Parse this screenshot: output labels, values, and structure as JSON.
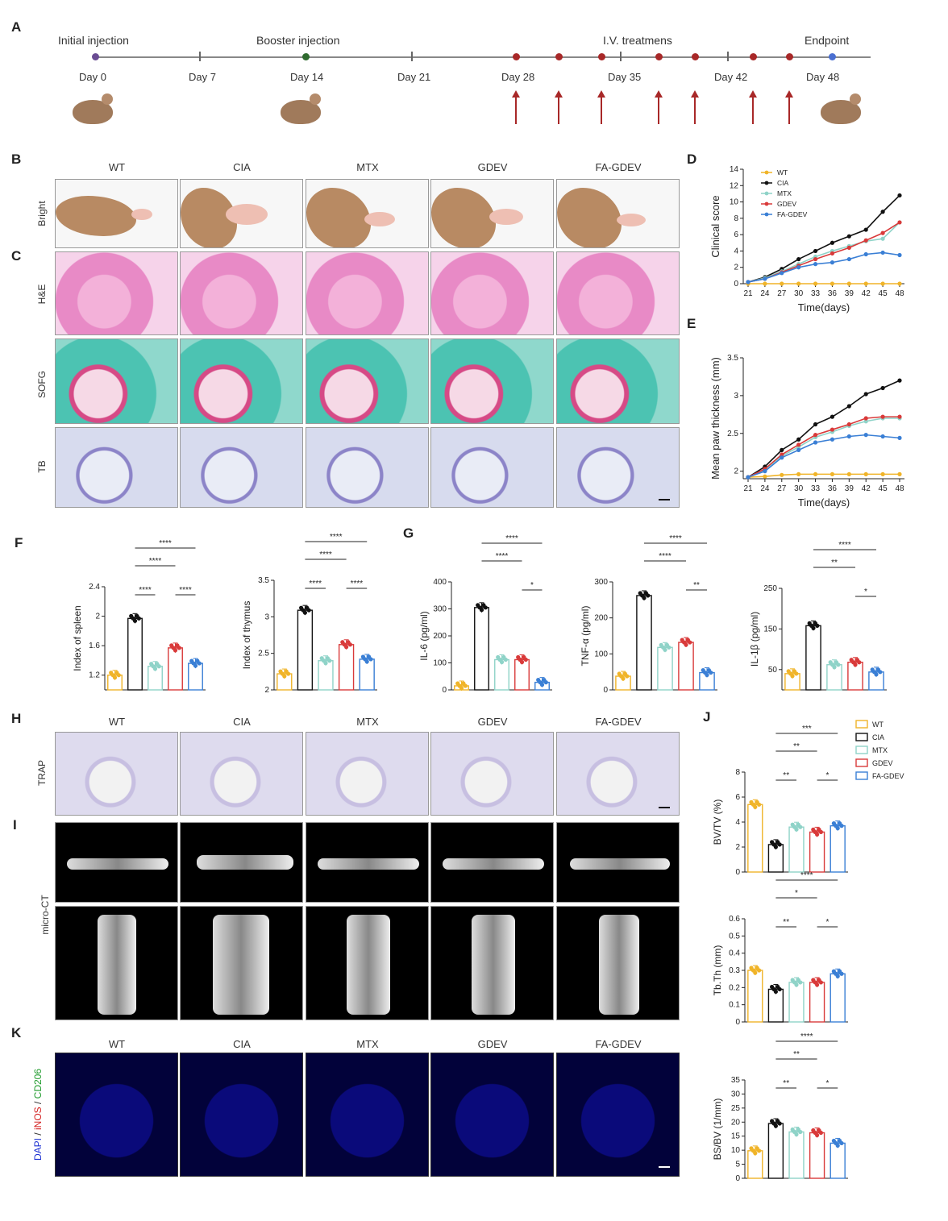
{
  "panel_letters": {
    "A": "A",
    "B": "B",
    "C": "C",
    "D": "D",
    "E": "E",
    "F": "F",
    "G": "G",
    "H": "H",
    "I": "I",
    "J": "J",
    "K": "K"
  },
  "timeline": {
    "events": {
      "initial": "Initial injection",
      "booster": "Booster injection",
      "iv": "I.V. treatmens",
      "endpoint": "Endpoint"
    },
    "days": [
      "Day 0",
      "Day 7",
      "Day 14",
      "Day 21",
      "Day 28",
      "Day 35",
      "Day 42",
      "Day 48"
    ],
    "colors": {
      "initial": "#6a4c93",
      "booster": "#2f6b2f",
      "treat": "#a82828",
      "endpoint": "#4a6fd1",
      "line": "#888888"
    }
  },
  "groups": [
    "WT",
    "CIA",
    "MTX",
    "GDEV",
    "FA-GDEV"
  ],
  "row_labels": {
    "bright": "Bright",
    "he": "H&E",
    "sofg": "SOFG",
    "tb": "TB",
    "trap": "TRAP",
    "microct": "micro-CT"
  },
  "k_label": {
    "dapi": "DAPI",
    "inos": "iNOS",
    "cd206": "CD206",
    "sep": " / "
  },
  "colors": {
    "WT": "#f0b429",
    "CIA": "#111111",
    "MTX": "#8fd3c8",
    "GDEV": "#d93a3a",
    "FA-GDEV": "#3a7fd5"
  },
  "chart_data": [
    {
      "id": "D",
      "type": "line",
      "xlabel": "Time(days)",
      "ylabel": "Clinical score",
      "x": [
        21,
        24,
        27,
        30,
        33,
        36,
        39,
        42,
        45,
        48
      ],
      "ylim": [
        0,
        14
      ],
      "yticks": [
        0,
        2,
        4,
        6,
        8,
        10,
        12,
        14
      ],
      "series": [
        {
          "name": "WT",
          "values": [
            0,
            0,
            0,
            0,
            0,
            0,
            0,
            0,
            0,
            0
          ]
        },
        {
          "name": "CIA",
          "values": [
            0.2,
            0.8,
            1.8,
            3.0,
            4.0,
            5.0,
            5.8,
            6.6,
            8.8,
            10.8
          ]
        },
        {
          "name": "MTX",
          "values": [
            0.2,
            0.7,
            1.5,
            2.4,
            3.3,
            4.0,
            4.6,
            5.2,
            5.5,
            7.5
          ]
        },
        {
          "name": "GDEV",
          "values": [
            0.2,
            0.6,
            1.4,
            2.2,
            3.0,
            3.7,
            4.4,
            5.3,
            6.2,
            7.5
          ]
        },
        {
          "name": "FA-GDEV",
          "values": [
            0.2,
            0.6,
            1.3,
            2.0,
            2.4,
            2.6,
            3.0,
            3.6,
            3.8,
            3.5
          ]
        }
      ],
      "legend_labels": [
        "WT",
        "CIA",
        "MTX",
        "GDEV",
        "FA-GDEV"
      ],
      "legend": "top-left"
    },
    {
      "id": "E",
      "type": "line",
      "xlabel": "Time(days)",
      "ylabel": "Mean paw thickness (mm)",
      "x": [
        21,
        24,
        27,
        30,
        33,
        36,
        39,
        42,
        45,
        48
      ],
      "ylim": [
        1.9,
        3.5
      ],
      "yticks": [
        2.0,
        2.5,
        3.0,
        3.5
      ],
      "series": [
        {
          "name": "WT",
          "values": [
            1.92,
            1.93,
            1.95,
            1.96,
            1.96,
            1.96,
            1.96,
            1.96,
            1.96,
            1.96
          ]
        },
        {
          "name": "CIA",
          "values": [
            1.92,
            2.06,
            2.28,
            2.42,
            2.62,
            2.72,
            2.86,
            3.02,
            3.1,
            3.2
          ]
        },
        {
          "name": "MTX",
          "values": [
            1.92,
            2.02,
            2.2,
            2.32,
            2.45,
            2.52,
            2.6,
            2.66,
            2.7,
            2.7
          ]
        },
        {
          "name": "GDEV",
          "values": [
            1.92,
            2.03,
            2.22,
            2.35,
            2.48,
            2.55,
            2.62,
            2.7,
            2.72,
            2.72
          ]
        },
        {
          "name": "FA-GDEV",
          "values": [
            1.92,
            2.0,
            2.18,
            2.28,
            2.38,
            2.42,
            2.46,
            2.48,
            2.46,
            2.44
          ]
        }
      ]
    },
    {
      "id": "F1",
      "type": "bar",
      "ylabel": "Index of spleen",
      "ylim": [
        1.0,
        2.4
      ],
      "yticks": [
        1.2,
        1.6,
        2.0,
        2.4
      ],
      "categories": [
        "WT",
        "CIA",
        "MTX",
        "GDEV",
        "FA-GDEV"
      ],
      "values": [
        1.2,
        1.97,
        1.32,
        1.57,
        1.36
      ],
      "sig": [
        {
          "from": 1,
          "to": 4,
          "label": "****",
          "level": 3
        },
        {
          "from": 1,
          "to": 3,
          "label": "****",
          "level": 2
        },
        {
          "from": 1,
          "to": 2,
          "label": "****",
          "level": 1
        },
        {
          "from": 3,
          "to": 4,
          "label": "****",
          "level": 1
        }
      ]
    },
    {
      "id": "F2",
      "type": "bar",
      "ylabel": "Index of thymus",
      "ylim": [
        2.0,
        3.5
      ],
      "yticks": [
        2.0,
        2.5,
        3.0,
        3.5
      ],
      "categories": [
        "WT",
        "CIA",
        "MTX",
        "GDEV",
        "FA-GDEV"
      ],
      "values": [
        2.22,
        3.09,
        2.4,
        2.62,
        2.42
      ],
      "sig": [
        {
          "from": 1,
          "to": 4,
          "label": "****",
          "level": 3
        },
        {
          "from": 1,
          "to": 3,
          "label": "****",
          "level": 2
        },
        {
          "from": 1,
          "to": 2,
          "label": "****",
          "level": 1
        },
        {
          "from": 3,
          "to": 4,
          "label": "****",
          "level": 1
        }
      ]
    },
    {
      "id": "G1",
      "type": "bar",
      "ylabel": "IL-6 (pg/ml)",
      "ylim": [
        0,
        400
      ],
      "yticks": [
        0,
        100,
        200,
        300,
        400
      ],
      "categories": [
        "WT",
        "CIA",
        "MTX",
        "GDEV",
        "FA-GDEV"
      ],
      "values": [
        15,
        305,
        112,
        112,
        28
      ],
      "sig": [
        {
          "from": 1,
          "to": 4,
          "label": "****",
          "level": 3
        },
        {
          "from": 1,
          "to": 3,
          "label": "****",
          "level": 2
        },
        {
          "from": 3,
          "to": 4,
          "label": "*",
          "level": 1
        }
      ]
    },
    {
      "id": "G2",
      "type": "bar",
      "ylabel": "TNF-α (pg/ml)",
      "ylim": [
        0,
        300
      ],
      "yticks": [
        0,
        100,
        200,
        300
      ],
      "categories": [
        "WT",
        "CIA",
        "MTX",
        "GDEV",
        "FA-GDEV"
      ],
      "values": [
        38,
        262,
        118,
        132,
        48
      ],
      "sig": [
        {
          "from": 1,
          "to": 4,
          "label": "****",
          "level": 3
        },
        {
          "from": 1,
          "to": 3,
          "label": "****",
          "level": 2
        },
        {
          "from": 3,
          "to": 4,
          "label": "**",
          "level": 1
        }
      ]
    },
    {
      "id": "G3",
      "type": "bar",
      "ylabel": "IL-1β (pg/ml)",
      "ylim": [
        0,
        250
      ],
      "yticks": [
        50,
        150,
        250
      ],
      "categories": [
        "WT",
        "CIA",
        "MTX",
        "GDEV",
        "FA-GDEV"
      ],
      "values": [
        40,
        158,
        62,
        68,
        44
      ],
      "sig": [
        {
          "from": 1,
          "to": 4,
          "label": "****",
          "level": 3
        },
        {
          "from": 1,
          "to": 3,
          "label": "**",
          "level": 2
        },
        {
          "from": 3,
          "to": 4,
          "label": "*",
          "level": 1
        }
      ]
    },
    {
      "id": "J1",
      "type": "bar",
      "ylabel": "BV/TV (%)",
      "ylim": [
        0,
        8
      ],
      "yticks": [
        0,
        2,
        4,
        6,
        8
      ],
      "categories": [
        "WT",
        "CIA",
        "MTX",
        "GDEV",
        "FA-GDEV"
      ],
      "values": [
        5.4,
        2.2,
        3.6,
        3.2,
        3.7
      ],
      "sig": [
        {
          "from": 1,
          "to": 4,
          "label": "***",
          "level": 3
        },
        {
          "from": 1,
          "to": 3,
          "label": "**",
          "level": 2
        },
        {
          "from": 1,
          "to": 2,
          "label": "**",
          "level": 1
        },
        {
          "from": 3,
          "to": 4,
          "label": "*",
          "level": 1
        }
      ],
      "legend_labels": [
        "WT",
        "CIA",
        "MTX",
        "GDEV",
        "FA-GDEV"
      ]
    },
    {
      "id": "J2",
      "type": "bar",
      "ylabel": "Tb.Th (mm)",
      "ylim": [
        0,
        0.6
      ],
      "yticks": [
        0.0,
        0.1,
        0.2,
        0.3,
        0.4,
        0.5,
        0.6
      ],
      "categories": [
        "WT",
        "CIA",
        "MTX",
        "GDEV",
        "FA-GDEV"
      ],
      "values": [
        0.3,
        0.19,
        0.23,
        0.23,
        0.28
      ],
      "sig": [
        {
          "from": 1,
          "to": 4,
          "label": "****",
          "level": 3
        },
        {
          "from": 1,
          "to": 3,
          "label": "*",
          "level": 2
        },
        {
          "from": 1,
          "to": 2,
          "label": "**",
          "level": 1
        },
        {
          "from": 3,
          "to": 4,
          "label": "*",
          "level": 1
        }
      ]
    },
    {
      "id": "J3",
      "type": "bar",
      "ylabel": "BS/BV (1/mm)",
      "ylim": [
        0,
        35
      ],
      "yticks": [
        0,
        5,
        10,
        15,
        20,
        25,
        30,
        35
      ],
      "categories": [
        "WT",
        "CIA",
        "MTX",
        "GDEV",
        "FA-GDEV"
      ],
      "values": [
        9.8,
        19.5,
        16.5,
        16.2,
        12.5
      ],
      "sig": [
        {
          "from": 1,
          "to": 4,
          "label": "****",
          "level": 3
        },
        {
          "from": 1,
          "to": 3,
          "label": "**",
          "level": 2
        },
        {
          "from": 1,
          "to": 2,
          "label": "**",
          "level": 1
        },
        {
          "from": 3,
          "to": 4,
          "label": "*",
          "level": 1
        }
      ]
    }
  ]
}
